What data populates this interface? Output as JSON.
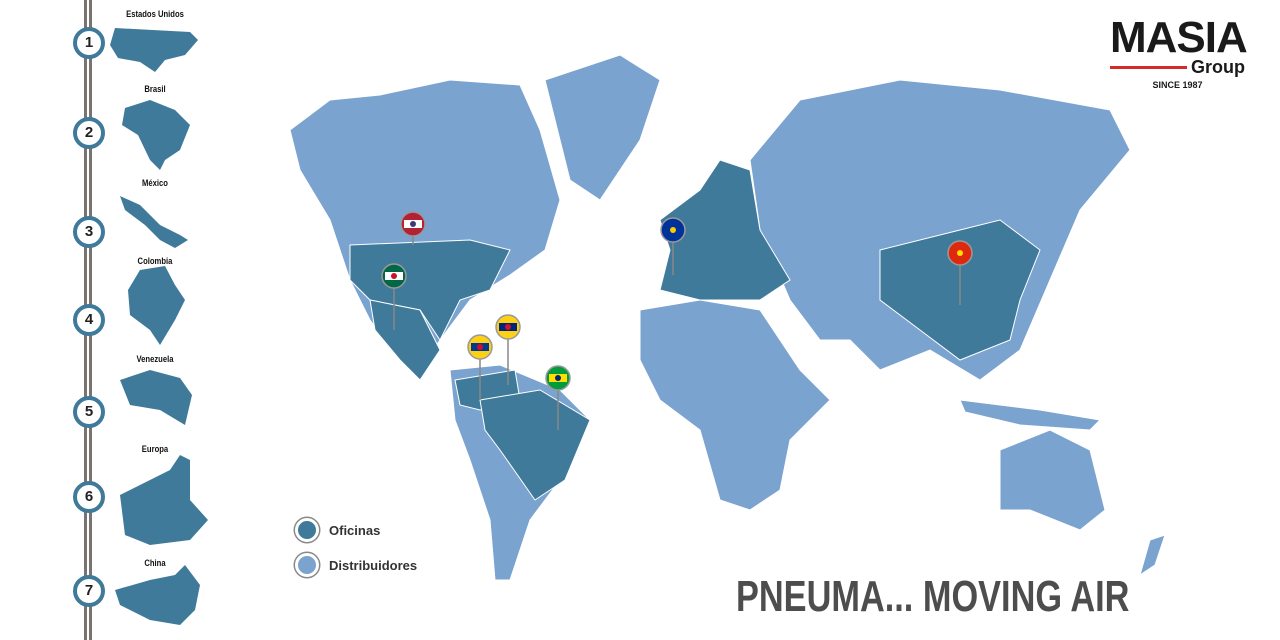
{
  "sidebar": {
    "items": [
      {
        "number": "1",
        "label": "Estados Unidos"
      },
      {
        "number": "2",
        "label": "Brasil"
      },
      {
        "number": "3",
        "label": "México"
      },
      {
        "number": "4",
        "label": "Colombia"
      },
      {
        "number": "5",
        "label": "Venezuela"
      },
      {
        "number": "6",
        "label": "Europa"
      },
      {
        "number": "7",
        "label": "China"
      }
    ]
  },
  "logo": {
    "name": "MASIA",
    "sub": "Group",
    "since": "SINCE 1987"
  },
  "legend": {
    "offices": "Oficinas",
    "distributors": "Distribuidores"
  },
  "slogan": "PNEUMA... MOVING AIR",
  "colors": {
    "offices": "#3f7a9a",
    "distributors": "#7ba3cf",
    "logo_accent": "#d62b2b"
  },
  "pins": [
    "us-flag-icon",
    "mexico-flag-icon",
    "colombia-flag-icon",
    "venezuela-flag-icon",
    "brazil-flag-icon",
    "eu-flag-icon",
    "china-flag-icon"
  ]
}
